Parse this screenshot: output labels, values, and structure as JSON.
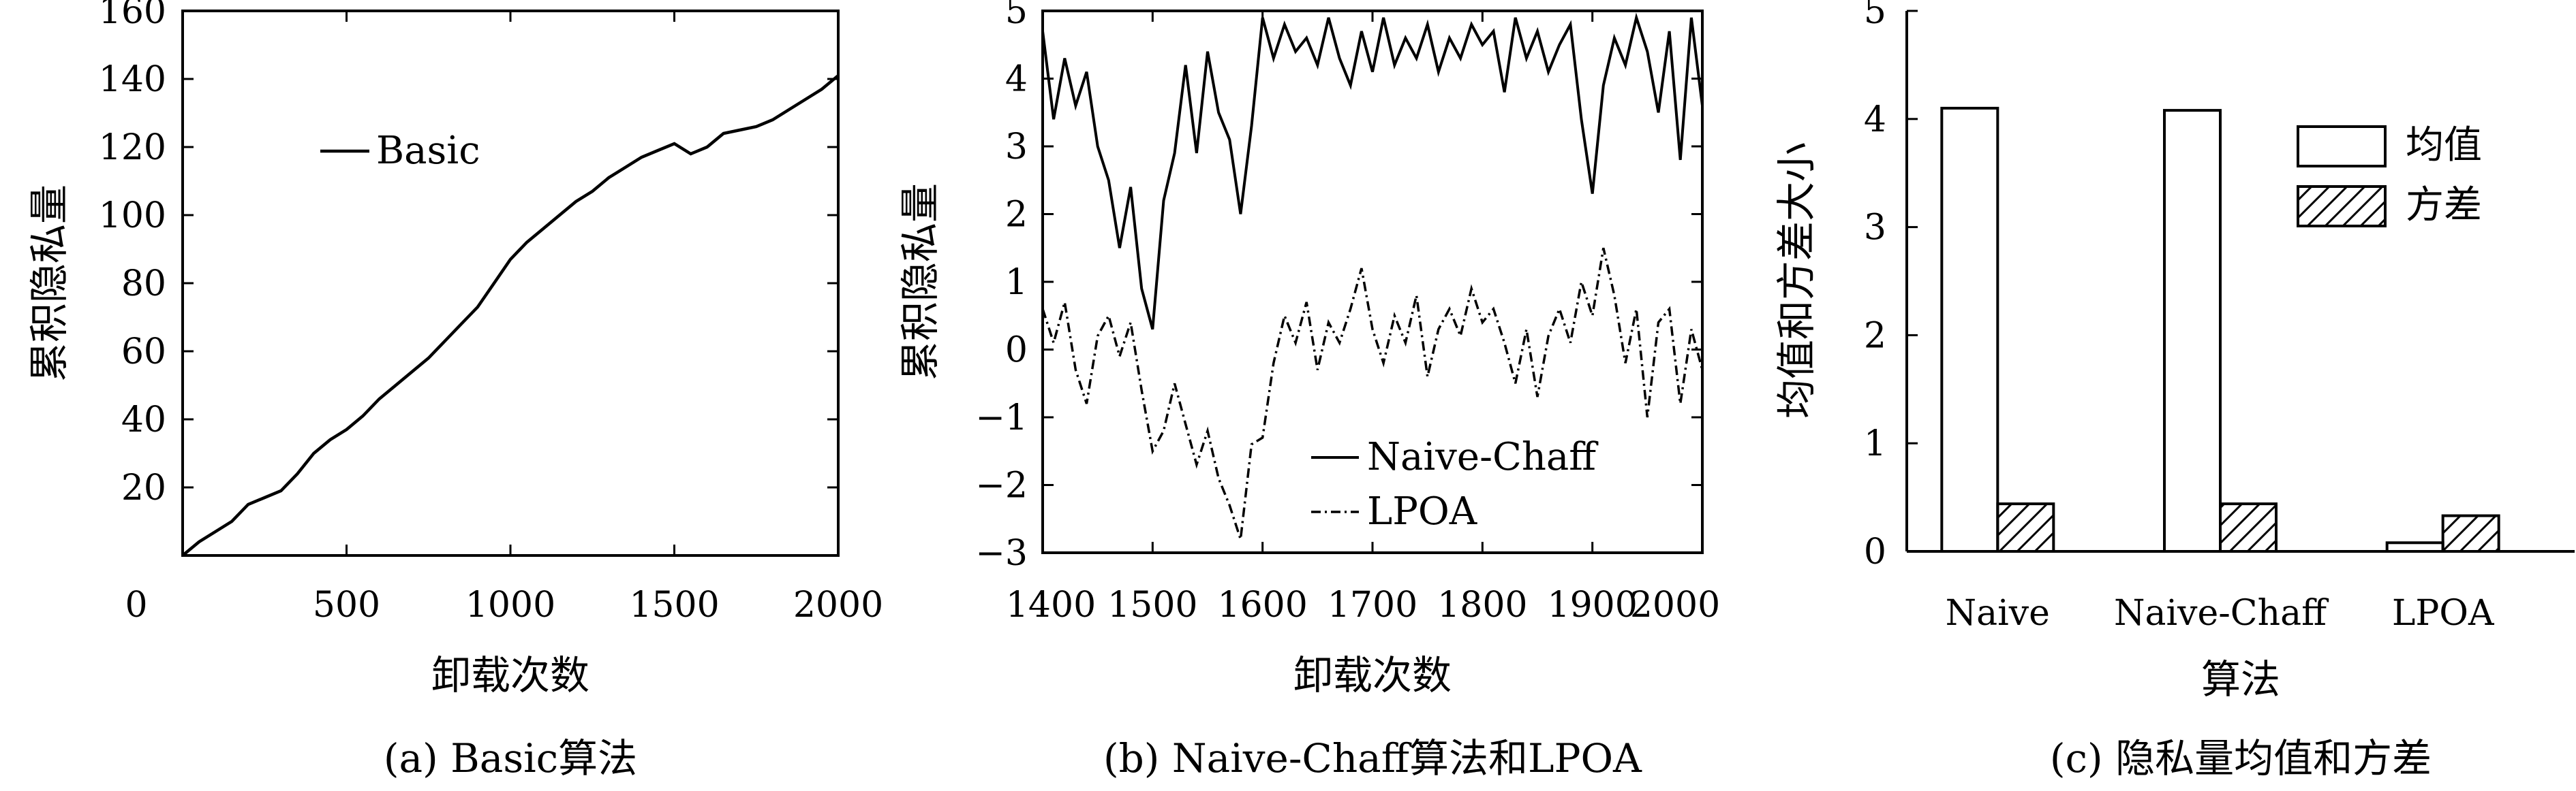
{
  "chart_data": [
    {
      "type": "line",
      "caption": "(a) Basic算法",
      "xlabel": "卸载次数",
      "ylabel": "累积隐私量",
      "xlim": [
        0,
        2000
      ],
      "ylim": [
        0,
        160
      ],
      "xticks": [
        "0",
        "500",
        "1000",
        "1500",
        "2000"
      ],
      "yticks": [
        "20",
        "40",
        "60",
        "80",
        "100",
        "120",
        "140",
        "160"
      ],
      "legend_position": "upper-left",
      "series": [
        {
          "name": "Basic",
          "style": "solid",
          "x": [
            0,
            50,
            100,
            150,
            200,
            250,
            300,
            350,
            400,
            450,
            500,
            550,
            600,
            650,
            700,
            750,
            800,
            850,
            900,
            950,
            1000,
            1050,
            1100,
            1150,
            1200,
            1250,
            1300,
            1350,
            1400,
            1450,
            1500,
            1550,
            1600,
            1650,
            1700,
            1750,
            1800,
            1850,
            1900,
            1950,
            2000
          ],
          "values": [
            0,
            4,
            7,
            10,
            15,
            17,
            19,
            24,
            30,
            34,
            37,
            41,
            46,
            50,
            54,
            58,
            63,
            68,
            73,
            80,
            87,
            92,
            96,
            100,
            104,
            107,
            111,
            114,
            117,
            119,
            121,
            118,
            120,
            124,
            125,
            126,
            128,
            131,
            134,
            137,
            141
          ]
        }
      ]
    },
    {
      "type": "line",
      "caption": "(b) Naive-Chaff算法和LPOA",
      "xlabel": "卸载次数",
      "ylabel": "累积隐私量",
      "xlim": [
        1400,
        2000
      ],
      "ylim": [
        -3,
        5
      ],
      "xticks": [
        "1400",
        "1500",
        "1600",
        "1700",
        "1800",
        "1900",
        "2000"
      ],
      "yticks": [
        "−3",
        "−2",
        "−1",
        "0",
        "1",
        "2",
        "3",
        "4",
        "5"
      ],
      "legend_position": "lower-right",
      "series": [
        {
          "name": "Naive-Chaff",
          "style": "solid",
          "x": [
            1400,
            1410,
            1420,
            1430,
            1440,
            1450,
            1460,
            1470,
            1480,
            1490,
            1500,
            1510,
            1520,
            1530,
            1540,
            1550,
            1560,
            1570,
            1580,
            1590,
            1600,
            1610,
            1620,
            1630,
            1640,
            1650,
            1660,
            1670,
            1680,
            1690,
            1700,
            1710,
            1720,
            1730,
            1740,
            1750,
            1760,
            1770,
            1780,
            1790,
            1800,
            1810,
            1820,
            1830,
            1840,
            1850,
            1860,
            1870,
            1880,
            1890,
            1900,
            1910,
            1920,
            1930,
            1940,
            1950,
            1960,
            1970,
            1980,
            1990,
            2000
          ],
          "values": [
            4.7,
            3.4,
            4.3,
            3.6,
            4.1,
            3.0,
            2.5,
            1.5,
            2.4,
            0.9,
            0.3,
            2.2,
            2.9,
            4.2,
            2.9,
            4.4,
            3.5,
            3.1,
            2.0,
            3.3,
            4.9,
            4.3,
            4.8,
            4.4,
            4.6,
            4.2,
            4.9,
            4.3,
            3.9,
            4.7,
            4.1,
            4.9,
            4.2,
            4.6,
            4.3,
            4.8,
            4.1,
            4.6,
            4.3,
            4.8,
            4.5,
            4.7,
            3.8,
            4.9,
            4.3,
            4.7,
            4.1,
            4.5,
            4.8,
            3.4,
            2.3,
            3.9,
            4.6,
            4.2,
            4.9,
            4.4,
            3.5,
            4.7,
            2.8,
            4.9,
            3.6
          ]
        },
        {
          "name": "LPOA",
          "style": "dash-dot",
          "x": [
            1400,
            1410,
            1420,
            1430,
            1440,
            1450,
            1460,
            1470,
            1480,
            1490,
            1500,
            1510,
            1520,
            1530,
            1540,
            1550,
            1560,
            1570,
            1580,
            1590,
            1600,
            1610,
            1620,
            1630,
            1640,
            1650,
            1660,
            1670,
            1680,
            1690,
            1700,
            1710,
            1720,
            1730,
            1740,
            1750,
            1760,
            1770,
            1780,
            1790,
            1800,
            1810,
            1820,
            1830,
            1840,
            1850,
            1860,
            1870,
            1880,
            1890,
            1900,
            1910,
            1920,
            1930,
            1940,
            1950,
            1960,
            1970,
            1980,
            1990,
            2000
          ],
          "values": [
            0.6,
            0.1,
            0.7,
            -0.3,
            -0.8,
            0.2,
            0.5,
            -0.1,
            0.4,
            -0.6,
            -1.5,
            -1.2,
            -0.5,
            -1.1,
            -1.7,
            -1.2,
            -1.9,
            -2.3,
            -2.8,
            -1.4,
            -1.3,
            -0.2,
            0.5,
            0.1,
            0.7,
            -0.3,
            0.4,
            0.1,
            0.6,
            1.2,
            0.3,
            -0.2,
            0.5,
            0.1,
            0.8,
            -0.4,
            0.3,
            0.6,
            0.2,
            0.9,
            0.4,
            0.6,
            0.1,
            -0.5,
            0.3,
            -0.7,
            0.2,
            0.6,
            0.1,
            1.0,
            0.5,
            1.5,
            0.8,
            -0.2,
            0.6,
            -1.0,
            0.4,
            0.6,
            -0.8,
            0.3,
            -0.3
          ]
        }
      ]
    },
    {
      "type": "bar",
      "caption": "(c) 隐私量均值和方差",
      "xlabel": "算法",
      "ylabel": "均值和方差大小",
      "ylim": [
        0,
        5
      ],
      "yticks": [
        "0",
        "1",
        "2",
        "3",
        "4",
        "5"
      ],
      "categories": [
        "Naive",
        "Naive-Chaff",
        "LPOA"
      ],
      "legend_position": "upper-right",
      "series": [
        {
          "name": "均值",
          "pattern": "plain",
          "values": [
            4.1,
            4.08,
            0.08
          ]
        },
        {
          "name": "方差",
          "pattern": "hatched",
          "values": [
            0.44,
            0.44,
            0.33
          ]
        }
      ]
    }
  ]
}
